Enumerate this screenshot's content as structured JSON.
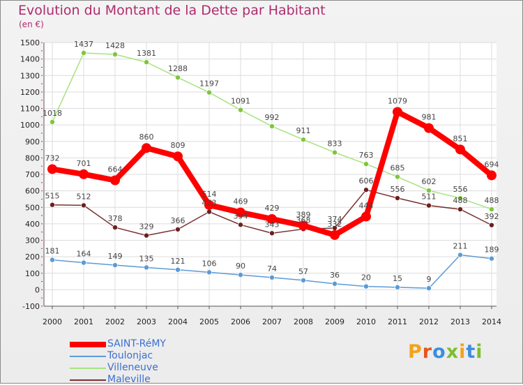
{
  "title": "Evolution du Montant de la Dette par Habitant",
  "subtitle": "(en €)",
  "logo": {
    "text": "Proxiti",
    "colors": [
      "#f2a21a",
      "#e8541c",
      "#3a8ee0",
      "#7cbf2e",
      "#f2a21a",
      "#3a8ee0",
      "#7cbf2e"
    ]
  },
  "chart_data": {
    "type": "line",
    "x": [
      2000,
      2001,
      2002,
      2003,
      2004,
      2005,
      2006,
      2007,
      2008,
      2009,
      2010,
      2011,
      2012,
      2013,
      2014
    ],
    "ylim": [
      -100,
      1500
    ],
    "yticks": [
      -100,
      0,
      100,
      200,
      300,
      400,
      500,
      600,
      700,
      800,
      900,
      1000,
      1100,
      1200,
      1300,
      1400,
      1500
    ],
    "grid": true,
    "legend_position": "bottom-left",
    "series": [
      {
        "name": "SAINT-RéMY",
        "color": "#ff0000",
        "marker": "#ff0000",
        "values": [
          732,
          701,
          664,
          860,
          809,
          514,
          469,
          429,
          389,
          332,
          444,
          1079,
          981,
          851,
          694
        ]
      },
      {
        "name": "Toulonjac",
        "color": "#5b9bd5",
        "marker": "#5b9bd5",
        "values": [
          181,
          164,
          149,
          135,
          121,
          106,
          90,
          74,
          57,
          36,
          20,
          15,
          9,
          211,
          189
        ]
      },
      {
        "name": "Villeneuve",
        "color": "#a6e37e",
        "marker": "#7ec63c",
        "values": [
          1018,
          1437,
          1428,
          1381,
          1288,
          1197,
          1091,
          992,
          911,
          833,
          763,
          685,
          602,
          556,
          488
        ]
      },
      {
        "name": "Maleville",
        "color": "#7a3030",
        "marker": "#6b2020",
        "values": [
          515,
          512,
          378,
          329,
          366,
          473,
          394,
          343,
          368,
          374,
          606,
          556,
          511,
          488,
          392
        ]
      }
    ]
  }
}
